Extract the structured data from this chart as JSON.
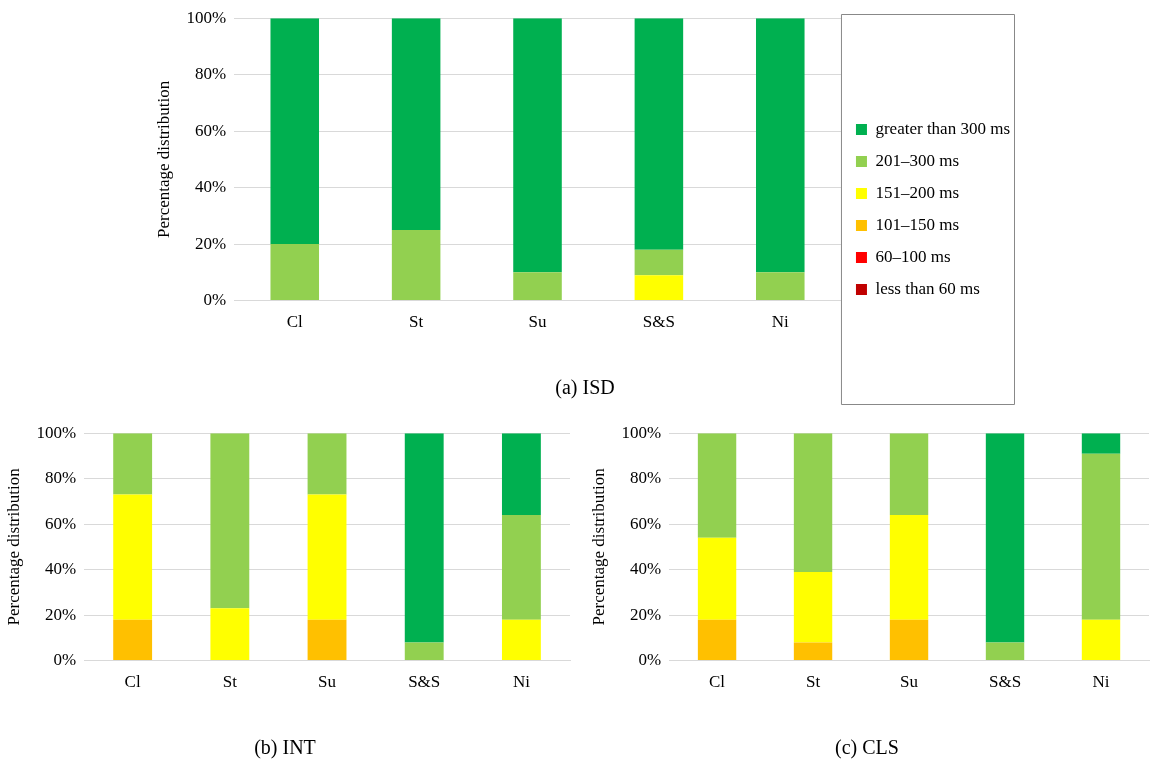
{
  "chart_data": [
    {
      "type": "bar",
      "title": "(a) ISD",
      "ylabel": "Percentage distribution",
      "categories": [
        "Cl",
        "St",
        "Su",
        "S&S",
        "Ni"
      ],
      "stacked": true,
      "grid": "y",
      "legend": "right",
      "ylim": [
        0,
        100
      ],
      "yticks": [
        {
          "value": 0,
          "label": "0%"
        },
        {
          "value": 20,
          "label": "20%"
        },
        {
          "value": 40,
          "label": "40%"
        },
        {
          "value": 60,
          "label": "60%"
        },
        {
          "value": 80,
          "label": "80%"
        },
        {
          "value": 100,
          "label": "100%"
        }
      ],
      "series": [
        {
          "name": "less than 60 ms",
          "color": "#c00000",
          "values": [
            0,
            0,
            0,
            0,
            0
          ]
        },
        {
          "name": "60–100 ms",
          "color": "#ff0000",
          "values": [
            0,
            0,
            0,
            0,
            0
          ]
        },
        {
          "name": "101–150 ms",
          "color": "#ffc000",
          "values": [
            0,
            0,
            0,
            0,
            0
          ]
        },
        {
          "name": "151–200 ms",
          "color": "#ffff00",
          "values": [
            0,
            0,
            0,
            9,
            0
          ]
        },
        {
          "name": "201–300 ms",
          "color": "#92d050",
          "values": [
            20,
            25,
            10,
            9,
            10
          ]
        },
        {
          "name": "greater than 300 ms",
          "color": "#00b050",
          "values": [
            80,
            75,
            90,
            82,
            90
          ]
        }
      ]
    },
    {
      "type": "bar",
      "title": "(b) INT",
      "ylabel": "Percentage distribution",
      "categories": [
        "Cl",
        "St",
        "Su",
        "S&S",
        "Ni"
      ],
      "stacked": true,
      "grid": "y",
      "ylim": [
        0,
        100
      ],
      "yticks": [
        {
          "value": 0,
          "label": "0%"
        },
        {
          "value": 20,
          "label": "20%"
        },
        {
          "value": 40,
          "label": "40%"
        },
        {
          "value": 60,
          "label": "60%"
        },
        {
          "value": 80,
          "label": "80%"
        },
        {
          "value": 100,
          "label": "100%"
        }
      ],
      "series": [
        {
          "color": "#c00000",
          "values": [
            0,
            0,
            0,
            0,
            0
          ]
        },
        {
          "color": "#ff0000",
          "values": [
            0,
            0,
            0,
            0,
            0
          ]
        },
        {
          "color": "#ffc000",
          "values": [
            18,
            0,
            18,
            0,
            0
          ]
        },
        {
          "color": "#ffff00",
          "values": [
            55,
            23,
            55,
            0,
            18
          ]
        },
        {
          "color": "#92d050",
          "values": [
            27,
            77,
            27,
            8,
            46
          ]
        },
        {
          "color": "#00b050",
          "values": [
            0,
            0,
            0,
            92,
            36
          ]
        }
      ]
    },
    {
      "type": "bar",
      "title": "(c) CLS",
      "ylabel": "Percentage distribution",
      "categories": [
        "Cl",
        "St",
        "Su",
        "S&S",
        "Ni"
      ],
      "stacked": true,
      "grid": "y",
      "ylim": [
        0,
        100
      ],
      "yticks": [
        {
          "value": 0,
          "label": "0%"
        },
        {
          "value": 20,
          "label": "20%"
        },
        {
          "value": 40,
          "label": "40%"
        },
        {
          "value": 60,
          "label": "60%"
        },
        {
          "value": 80,
          "label": "80%"
        },
        {
          "value": 100,
          "label": "100%"
        }
      ],
      "series": [
        {
          "color": "#c00000",
          "values": [
            0,
            0,
            0,
            0,
            0
          ]
        },
        {
          "color": "#ff0000",
          "values": [
            0,
            0,
            0,
            0,
            0
          ]
        },
        {
          "color": "#ffc000",
          "values": [
            18,
            8,
            18,
            0,
            0
          ]
        },
        {
          "color": "#ffff00",
          "values": [
            36,
            31,
            46,
            0,
            18
          ]
        },
        {
          "color": "#92d050",
          "values": [
            46,
            61,
            36,
            8,
            73
          ]
        },
        {
          "color": "#00b050",
          "values": [
            0,
            0,
            0,
            92,
            9
          ]
        }
      ]
    }
  ]
}
